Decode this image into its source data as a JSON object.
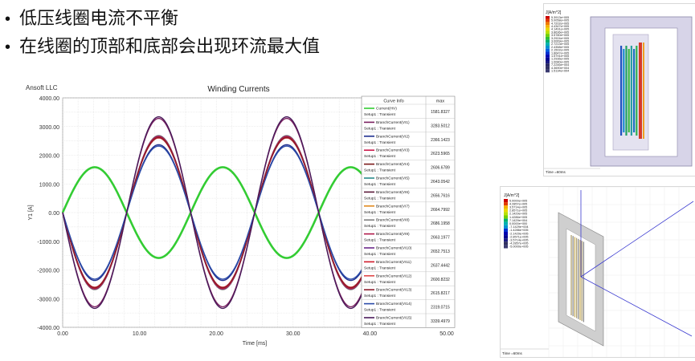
{
  "bullets": [
    "低压线圈电流不平衡",
    "在线圈的顶部和底部会出现环流最大值"
  ],
  "chart_data": {
    "type": "line",
    "title": "Winding Currents",
    "vendor": "Ansoft LLC",
    "xlabel": "Time [ms]",
    "ylabel": "Y1 [A]",
    "xlim": [
      0,
      50
    ],
    "ylim": [
      -4000,
      4000
    ],
    "x_ticks": [
      "0.00",
      "10.00",
      "20.00",
      "30.00",
      "40.00",
      "50.00"
    ],
    "y_ticks": [
      "4000.00",
      "3000.00",
      "2000.00",
      "1000.00",
      "0.00",
      "-1000.00",
      "-2000.00",
      "-3000.00",
      "-4000.00"
    ],
    "grid": true,
    "legend_header": [
      "Curve Info",
      "max"
    ],
    "frequency_hz": 60,
    "series": [
      {
        "name": "Current(HV)",
        "setup": "Setup1 : Transient",
        "max": "1581.8327",
        "color": "#33cc33",
        "amplitude": 1581.8,
        "phase": "hv"
      },
      {
        "name": "BranchCurrent(VI1)",
        "setup": "Setup1 : Transient",
        "max": "3283.5012",
        "color": "#7a2060",
        "amplitude": 3283.5,
        "phase": "lv"
      },
      {
        "name": "BranchCurrent(VI2)",
        "setup": "Setup1 : Transient",
        "max": "2366.1423",
        "color": "#1f2f8f",
        "amplitude": 2366.1,
        "phase": "lv"
      },
      {
        "name": "BranchCurrent(VI3)",
        "setup": "Setup1 : Transient",
        "max": "2623.5965",
        "color": "#cc1a4d",
        "amplitude": 2623.6,
        "phase": "lv"
      },
      {
        "name": "BranchCurrent(VI4)",
        "setup": "Setup1 : Transient",
        "max": "2606.6789",
        "color": "#7a1a1a",
        "amplitude": 2606.7,
        "phase": "lv"
      },
      {
        "name": "BranchCurrent(VI5)",
        "setup": "Setup1 : Transient",
        "max": "2643.0542",
        "color": "#2a8a8a",
        "amplitude": 2643.1,
        "phase": "lv"
      },
      {
        "name": "BranchCurrent(VI6)",
        "setup": "Setup1 : Transient",
        "max": "2656.7616",
        "color": "#5a1a3a",
        "amplitude": 2656.8,
        "phase": "lv"
      },
      {
        "name": "BranchCurrent(VI7)",
        "setup": "Setup1 : Transient",
        "max": "2664.7992",
        "color": "#e08a20",
        "amplitude": 2664.8,
        "phase": "lv"
      },
      {
        "name": "BranchCurrent(VI8)",
        "setup": "Setup1 : Transient",
        "max": "2686.1958",
        "color": "#808080",
        "amplitude": 2686.2,
        "phase": "lv"
      },
      {
        "name": "BranchCurrent(VI9)",
        "setup": "Setup1 : Transient",
        "max": "2663.1977",
        "color": "#b01a4a",
        "amplitude": 2663.2,
        "phase": "lv"
      },
      {
        "name": "BranchCurrent(VI10)",
        "setup": "Setup1 : Transient",
        "max": "2652.7513",
        "color": "#6a2a8a",
        "amplitude": 2652.8,
        "phase": "lv"
      },
      {
        "name": "BranchCurrent(VI11)",
        "setup": "Setup1 : Transient",
        "max": "2637.4442",
        "color": "#d01a2a",
        "amplitude": 2637.4,
        "phase": "lv"
      },
      {
        "name": "BranchCurrent(VI12)",
        "setup": "Setup1 : Transient",
        "max": "2600.8232",
        "color": "#e04a4a",
        "amplitude": 2600.8,
        "phase": "lv"
      },
      {
        "name": "BranchCurrent(VI13)",
        "setup": "Setup1 : Transient",
        "max": "2615.8217",
        "color": "#8a1a2a",
        "amplitude": 2615.8,
        "phase": "lv"
      },
      {
        "name": "BranchCurrent(VI14)",
        "setup": "Setup1 : Transient",
        "max": "2319.0715",
        "color": "#2a4aa8",
        "amplitude": 2319.1,
        "phase": "lv"
      },
      {
        "name": "BranchCurrent(VI15)",
        "setup": "Setup1 : Transient",
        "max": "3339.4979",
        "color": "#4a1a5a",
        "amplitude": 3339.5,
        "phase": "lv"
      }
    ]
  },
  "sim_top": {
    "legend_title": "J[A/m^2]",
    "legend_values": [
      "5.3913e+005",
      "5.0058e+005",
      "4.7202e+005",
      "4.4347e+005",
      "4.1491e+005",
      "3.8636e+005",
      "3.5780e+005",
      "3.2924e+005",
      "3.0069e+005",
      "2.7213e+005",
      "2.4358e+005",
      "2.1502e+005",
      "1.8647e+005",
      "1.5791e+005",
      "1.2936e+005",
      "1.0080e+005",
      "7.2246e+004",
      "4.3690e+004",
      "1.5134e+004"
    ],
    "time_label": "Time =60ms"
  },
  "sim_bottom": {
    "legend_title": "J[A/m^2]",
    "legend_values": [
      "5.0000e+005",
      "4.2857e+005",
      "3.5714e+005",
      "2.8571e+005",
      "2.1429e+005",
      "1.4286e+005",
      "7.1429e+004",
      "0.0000e+000",
      "-7.1429e+004",
      "-1.4286e+005",
      "-2.1429e+005",
      "-2.8571e+005",
      "-3.5714e+005",
      "-4.2857e+005",
      "-5.0000e+005"
    ],
    "time_label": "Time =60ms"
  }
}
